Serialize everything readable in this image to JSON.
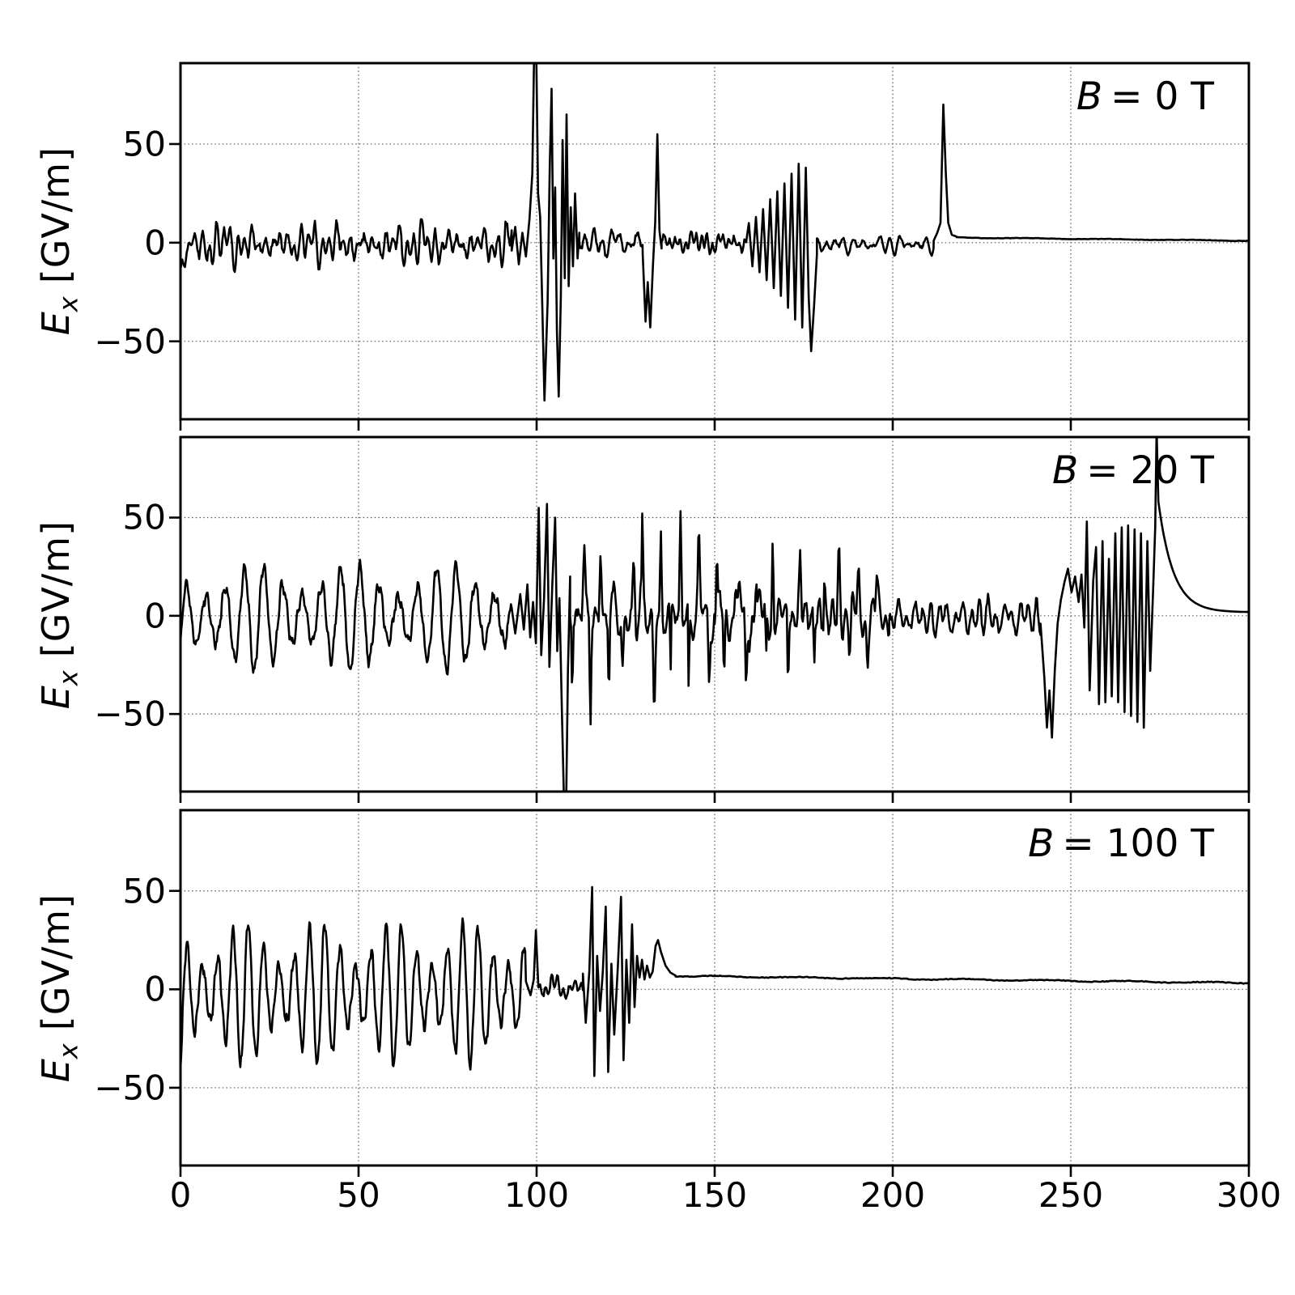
{
  "figure": {
    "background": "#ffffff",
    "border_color": "#000000",
    "line_color": "#000000",
    "grid_color": "#555555",
    "text_color": "#000000"
  },
  "chart_data": {
    "type": "line",
    "title": "",
    "xlabel": "",
    "ylabel": "E_x [GV/m]",
    "ylabel_var": "E",
    "ylabel_sub": "x",
    "ylabel_unit": "[GV/m]",
    "xlim": [
      0,
      300
    ],
    "ylim": [
      -89.5,
      91
    ],
    "grid": "dotted",
    "legend": "none",
    "axis": {
      "xticks": [
        0,
        50,
        100,
        150,
        200,
        250,
        300
      ],
      "xticklabels": [
        "0",
        "50",
        "100",
        "150",
        "200",
        "250",
        "300"
      ],
      "yticks": [
        50,
        0,
        -50
      ],
      "yticklabels": [
        "50",
        "0",
        "−50"
      ]
    },
    "panels": [
      {
        "label": "B = 0 T",
        "label_var": "B",
        "label_rest": "= 0 T",
        "seed": 11,
        "segments": [
          {
            "type": "noise",
            "x0": 0,
            "x1": 93,
            "amp": 9,
            "mean": -1,
            "start": -15,
            "beat": 27,
            "mod": 0.45
          },
          {
            "type": "points",
            "pts": [
              [
                93,
                -4
              ],
              [
                94,
                8
              ],
              [
                95,
                -11
              ],
              [
                96,
                5
              ],
              [
                97,
                -7
              ],
              [
                98,
                12
              ],
              [
                98.8,
                35
              ],
              [
                99.3,
                96
              ],
              [
                99.9,
                96
              ],
              [
                100.4,
                25
              ],
              [
                101,
                13
              ],
              [
                101.6,
                -32
              ],
              [
                102.2,
                -80
              ],
              [
                102.7,
                -52
              ],
              [
                103.1,
                -30
              ],
              [
                103.7,
                40
              ],
              [
                104.2,
                78
              ],
              [
                104.7,
                -8
              ],
              [
                105.2,
                28
              ],
              [
                105.7,
                -45
              ],
              [
                106.2,
                -78
              ],
              [
                106.8,
                -28
              ],
              [
                107.3,
                52
              ],
              [
                107.9,
                -18
              ],
              [
                108.4,
                65
              ],
              [
                109,
                -22
              ],
              [
                109.6,
                18
              ],
              [
                110.2,
                -12
              ],
              [
                110.8,
                25
              ],
              [
                111.5,
                -8
              ],
              [
                112,
                5
              ]
            ]
          },
          {
            "type": "noise",
            "x0": 112,
            "x1": 129.8,
            "amp": 6.5,
            "mean": 0,
            "beat": 19,
            "mod": 0.35
          },
          {
            "type": "points",
            "pts": [
              [
                129.8,
                -6
              ],
              [
                130.6,
                -40
              ],
              [
                131.2,
                -20
              ],
              [
                131.9,
                -43
              ],
              [
                132.7,
                -10
              ],
              [
                133.3,
                10
              ],
              [
                133.9,
                55
              ],
              [
                134.5,
                6
              ],
              [
                135.1,
                -3
              ]
            ]
          },
          {
            "type": "noise",
            "x0": 135.1,
            "x1": 159,
            "amp": 5,
            "mean": 0,
            "beat": 17,
            "mod": 0.35
          },
          {
            "type": "points",
            "pts": [
              [
                159.6,
                10
              ],
              [
                160.6,
                -12
              ],
              [
                161.6,
                13
              ],
              [
                162.6,
                -15
              ],
              [
                163.6,
                17
              ],
              [
                164.6,
                -19
              ],
              [
                165.6,
                22
              ],
              [
                166.6,
                -23
              ],
              [
                167.6,
                26
              ],
              [
                168.6,
                -27
              ],
              [
                169.6,
                30
              ],
              [
                170.6,
                -33
              ],
              [
                171.6,
                35
              ],
              [
                172.6,
                -39
              ],
              [
                173.6,
                40
              ],
              [
                174.6,
                -43
              ],
              [
                175.6,
                38
              ],
              [
                176.4,
                -28
              ],
              [
                177.1,
                -55
              ],
              [
                177.9,
                -32
              ],
              [
                178.7,
                -6
              ]
            ]
          },
          {
            "type": "noise",
            "x0": 178.7,
            "x1": 211.5,
            "amp": 4,
            "mean": -1,
            "beat": 15,
            "mod": 0.4
          },
          {
            "type": "points",
            "pts": [
              [
                211.5,
                1
              ],
              [
                212.5,
                5
              ],
              [
                213.4,
                10
              ],
              [
                214.2,
                70
              ],
              [
                214.9,
                35
              ],
              [
                215.6,
                10
              ],
              [
                216.6,
                4
              ],
              [
                218,
                3
              ]
            ]
          },
          {
            "type": "flat",
            "x0": 218,
            "x1": 300,
            "y0": 2.6,
            "y1": 1,
            "jitter": 0.25
          }
        ]
      },
      {
        "label": "B = 20 T",
        "label_var": "B",
        "label_rest": "= 20 T",
        "seed": 22,
        "segments": [
          {
            "type": "osc",
            "x0": 0,
            "x1": 93,
            "amp": 19,
            "period": 5.4,
            "mean": -1,
            "beat": 27,
            "mod": 0.42,
            "jitter": 5,
            "start": -4
          },
          {
            "type": "points",
            "pts": [
              [
                93,
                4
              ],
              [
                94,
                -9
              ],
              [
                95.4,
                11
              ],
              [
                96.4,
                -7
              ],
              [
                97.4,
                16
              ],
              [
                98.2,
                -11
              ],
              [
                99,
                7
              ],
              [
                99.8,
                -14
              ],
              [
                100.6,
                55
              ],
              [
                101.3,
                -20
              ],
              [
                102.1,
                9
              ],
              [
                102.9,
                57
              ],
              [
                103.6,
                -26
              ],
              [
                104.4,
                16
              ],
              [
                105.2,
                50
              ],
              [
                105.8,
                -18
              ],
              [
                106.4,
                9
              ],
              [
                107.1,
                -48
              ],
              [
                107.7,
                -96
              ],
              [
                108.3,
                -96
              ],
              [
                108.8,
                -28
              ],
              [
                109.4,
                20
              ]
            ]
          },
          {
            "type": "spiky",
            "x0": 109.4,
            "x1": 150,
            "base": 13,
            "amp0": 50,
            "amp1": 58,
            "period": 3.0,
            "mean": 0
          },
          {
            "type": "spiky",
            "x0": 150,
            "x1": 199,
            "base": 12,
            "amp0": 52,
            "amp1": 26,
            "period": 3.3,
            "mean": 0
          },
          {
            "type": "noise",
            "x0": 199,
            "x1": 241.5,
            "amp": 10,
            "mean": -1,
            "beat": 14,
            "mod": 0.4
          },
          {
            "type": "points",
            "pts": [
              [
                241.5,
                -4
              ],
              [
                242.6,
                -32
              ],
              [
                243.3,
                -57
              ],
              [
                244,
                -38
              ],
              [
                244.7,
                -62
              ],
              [
                245.5,
                -28
              ],
              [
                246.3,
                -4
              ],
              [
                247.2,
                8
              ],
              [
                248.2,
                17
              ],
              [
                249.2,
                24
              ],
              [
                250.2,
                12
              ],
              [
                251.2,
                20
              ],
              [
                252.2,
                7
              ],
              [
                253,
                21
              ],
              [
                253.8,
                -6
              ],
              [
                254.5,
                48
              ],
              [
                255.3,
                -38
              ],
              [
                256.3,
                18
              ],
              [
                257.1,
                35
              ],
              [
                257.9,
                -45
              ],
              [
                258.9,
                38
              ],
              [
                259.7,
                -44
              ],
              [
                260.7,
                29
              ],
              [
                261.5,
                -41
              ],
              [
                262.5,
                42
              ],
              [
                263.3,
                -44
              ],
              [
                264.3,
                45
              ],
              [
                265.1,
                -49
              ],
              [
                266.1,
                46
              ],
              [
                266.9,
                -51
              ],
              [
                267.9,
                44
              ],
              [
                268.7,
                -54
              ],
              [
                269.7,
                42
              ],
              [
                270.5,
                -57
              ],
              [
                271.5,
                38
              ],
              [
                272.3,
                -28
              ],
              [
                273.1,
                12
              ],
              [
                273.7,
                45
              ],
              [
                274.1,
                95
              ],
              [
                274.6,
                58
              ]
            ]
          },
          {
            "type": "decay",
            "x0": 274.6,
            "x1": 300,
            "y0": 58,
            "y1": 1.8,
            "tau": 4.2
          }
        ]
      },
      {
        "label": "B = 100 T",
        "label_var": "B",
        "label_rest": "= 100 T",
        "seed": 33,
        "segments": [
          {
            "type": "osc",
            "x0": 0,
            "x1": 97,
            "amp": 25,
            "period": 4.3,
            "mean": -2,
            "beat": 21,
            "mod": 0.45,
            "jitter": 5,
            "start": -10
          },
          {
            "type": "points",
            "pts": [
              [
                97,
                4
              ],
              [
                98.3,
                -3
              ],
              [
                99.2,
                5
              ],
              [
                99.8,
                30
              ],
              [
                100.5,
                1
              ]
            ]
          },
          {
            "type": "noise",
            "x0": 100.5,
            "x1": 113,
            "amp": 5.5,
            "mean": 0.5,
            "beat": 9,
            "mod": 0.3
          },
          {
            "type": "points",
            "pts": [
              [
                113,
                8
              ],
              [
                113.8,
                -17
              ],
              [
                114.8,
                9
              ],
              [
                115.6,
                52
              ],
              [
                116.2,
                -44
              ],
              [
                117,
                17
              ],
              [
                117.8,
                -11
              ],
              [
                118.6,
                9
              ],
              [
                119.4,
                42
              ],
              [
                120.1,
                -42
              ],
              [
                121,
                13
              ],
              [
                121.8,
                -23
              ],
              [
                122.8,
                11
              ],
              [
                123.7,
                47
              ],
              [
                124.4,
                -36
              ],
              [
                125.2,
                15
              ],
              [
                126,
                -17
              ],
              [
                126.8,
                33
              ],
              [
                127.5,
                -9
              ],
              [
                128.2,
                17
              ],
              [
                128.9,
                6
              ],
              [
                129.6,
                15
              ],
              [
                130.3,
                5
              ],
              [
                131,
                12
              ],
              [
                131.8,
                6
              ],
              [
                132.6,
                9
              ],
              [
                133.4,
                22
              ],
              [
                134.1,
                25
              ],
              [
                134.9,
                19
              ],
              [
                136.2,
                12
              ],
              [
                137.6,
                8.5
              ],
              [
                139,
                7
              ]
            ]
          },
          {
            "type": "flat",
            "x0": 139,
            "x1": 300,
            "y0": 6.8,
            "y1": 3.2,
            "jitter": 0.5
          }
        ]
      }
    ]
  }
}
